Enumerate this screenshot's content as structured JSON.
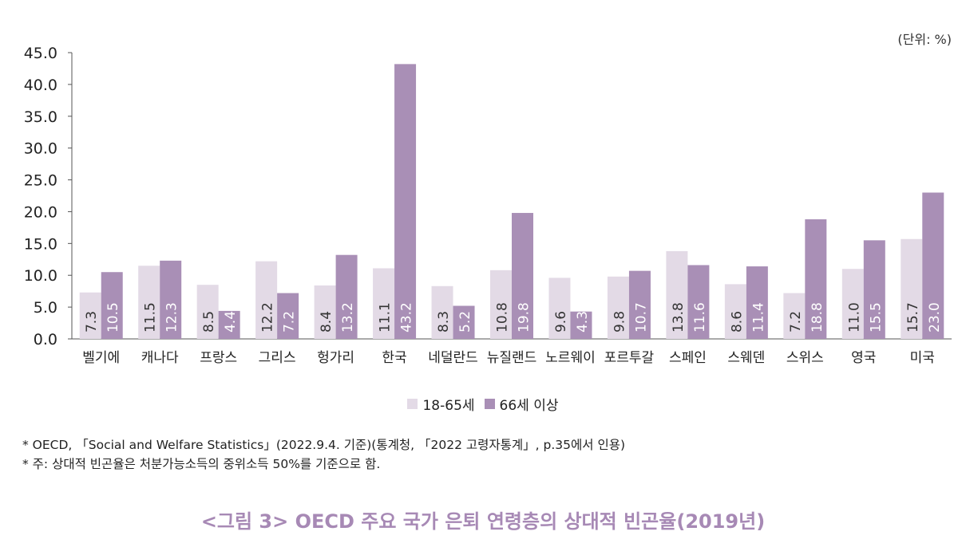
{
  "unit_label": "(단위: %)",
  "notes": [
    "* OECD, 「Social and Welfare Statistics」(2022.9.4. 기준)(통계청, 「2022 고령자통계」, p.35에서 인용)",
    "* 주: 상대적 빈곤율은 처분가능소득의 중위소득 50%를 기준으로 함."
  ],
  "caption": "<그림 3> OECD 주요 국가 은퇴 연령층의 상대적 빈곤율(2019년)",
  "colors": {
    "series1": "#e3dae6",
    "series2": "#a98fb6"
  },
  "chart_data": {
    "type": "bar",
    "categories": [
      "벨기에",
      "캐나다",
      "프랑스",
      "그리스",
      "헝가리",
      "한국",
      "네덜란드",
      "뉴질랜드",
      "노르웨이",
      "포르투갈",
      "스페인",
      "스웨덴",
      "스위스",
      "영국",
      "미국"
    ],
    "series": [
      {
        "name": "18-65세",
        "values": [
          7.3,
          11.5,
          8.5,
          12.2,
          8.4,
          11.1,
          8.3,
          10.8,
          9.6,
          9.8,
          13.8,
          8.6,
          7.2,
          11.0,
          15.7
        ]
      },
      {
        "name": "66세 이상",
        "values": [
          10.5,
          12.3,
          4.4,
          7.2,
          13.2,
          43.2,
          5.2,
          19.8,
          4.3,
          10.7,
          11.6,
          11.4,
          18.8,
          15.5,
          23.0
        ]
      }
    ],
    "ylim": [
      0,
      45
    ],
    "yticks": [
      "0.0",
      "5.0",
      "10.0",
      "15.0",
      "20.0",
      "25.0",
      "30.0",
      "35.0",
      "40.0",
      "45.0"
    ],
    "legend_position": "bottom"
  }
}
